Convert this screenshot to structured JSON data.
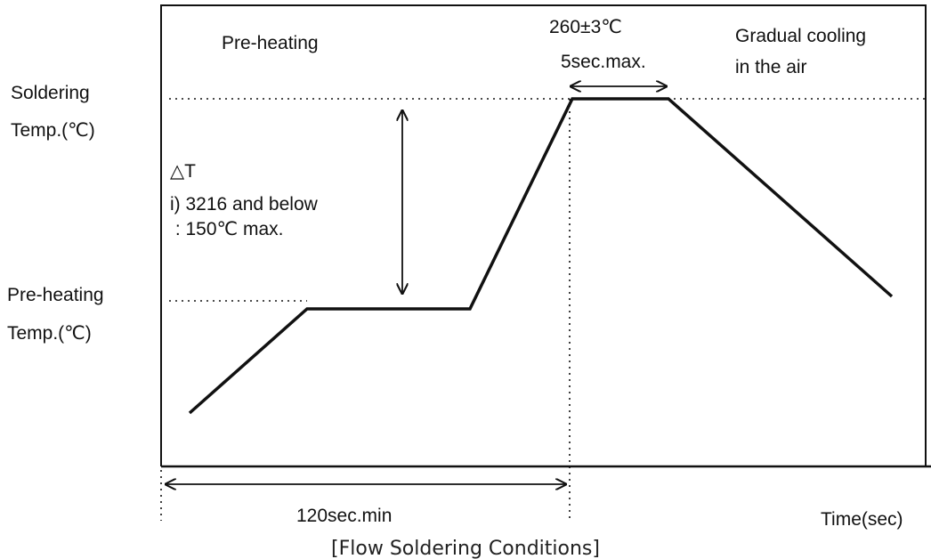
{
  "labels": {
    "preheating_zone": "Pre-heating",
    "peak_temp": "260±3℃",
    "peak_time": "5sec.max.",
    "cooling_line1": "Gradual cooling",
    "cooling_line2": "in the air",
    "soldering_temp_line1": "Soldering",
    "soldering_temp_line2": "Temp.(℃)",
    "delta_t": "△T",
    "delta_t_note1": "i) 3216 and below",
    "delta_t_note2": " : 150℃ max.",
    "preheat_temp_line1": "Pre-heating",
    "preheat_temp_line2": "Temp.(℃)",
    "duration": "120sec.min",
    "time_axis": "Time(sec)"
  },
  "caption": "[Flow Soldering Conditions]"
}
